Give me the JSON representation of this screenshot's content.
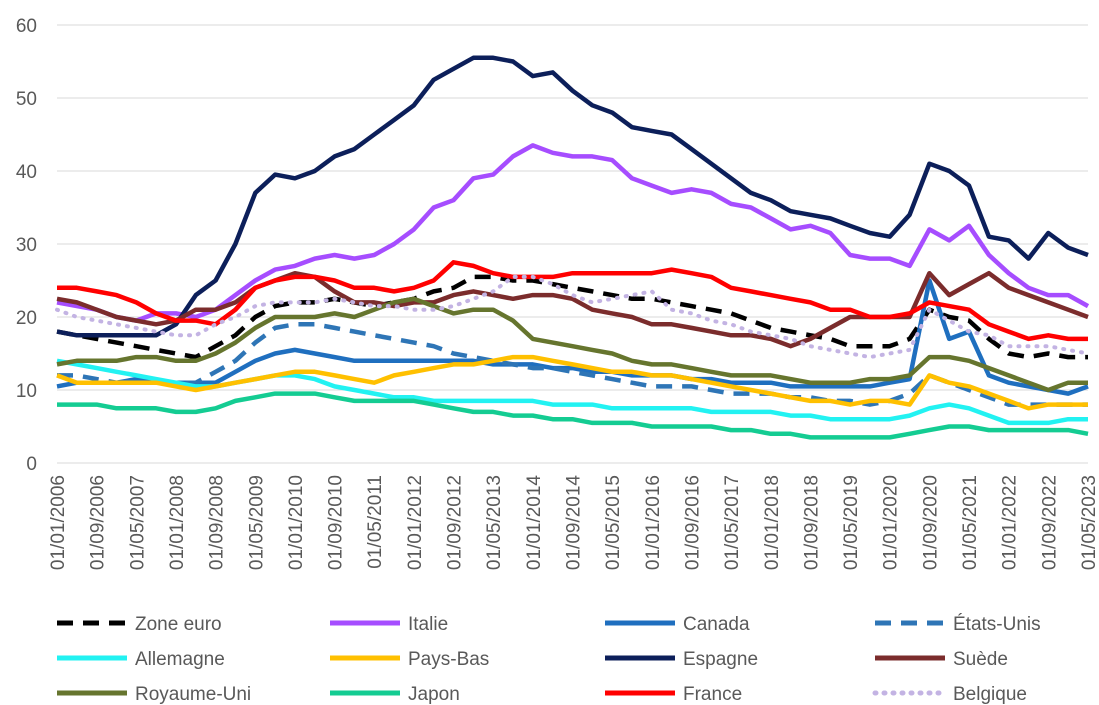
{
  "chart_data": {
    "type": "line",
    "categories": [
      "01/01/2006",
      null,
      "01/09/2006",
      null,
      "01/05/2007",
      null,
      "01/01/2008",
      null,
      "01/09/2008",
      null,
      "01/05/2009",
      null,
      "01/01/2010",
      null,
      "01/09/2010",
      null,
      "01/05/2011",
      null,
      "01/01/2012",
      null,
      "01/09/2012",
      null,
      "01/05/2013",
      null,
      "01/01/2014",
      null,
      "01/09/2014",
      null,
      "01/05/2015",
      null,
      "01/01/2016",
      null,
      "01/09/2016",
      null,
      "01/05/2017",
      null,
      "01/01/2018",
      null,
      "01/09/2018",
      null,
      "01/05/2019",
      null,
      "01/01/2020",
      null,
      "01/09/2020",
      null,
      "01/05/2021",
      null,
      "01/01/2022",
      null,
      "01/09/2022",
      null,
      "01/05/2023"
    ],
    "ylim": [
      0,
      60
    ],
    "yticks": [
      0,
      10,
      20,
      30,
      40,
      50,
      60
    ],
    "grid": true,
    "series": [
      {
        "name": "Zone euro",
        "color": "#000000",
        "style": "dashed",
        "values": [
          18,
          17.5,
          17,
          16.5,
          16,
          15.5,
          15,
          14.5,
          16,
          17.5,
          20,
          21.5,
          22,
          22,
          22.5,
          22,
          21.5,
          22,
          22.5,
          23.5,
          24,
          25.5,
          25.5,
          25,
          25,
          24.5,
          24,
          23.5,
          23,
          22.5,
          22.5,
          22,
          21.5,
          21,
          20.5,
          19.5,
          18.5,
          18,
          17.5,
          17,
          16,
          16,
          16,
          17,
          21,
          20,
          19.5,
          17,
          15,
          14.5,
          15,
          14.5,
          14.5
        ]
      },
      {
        "name": "Italie",
        "color": "#a64dff",
        "style": "solid",
        "values": [
          22,
          21.5,
          21,
          20,
          19.5,
          20.5,
          20.5,
          20,
          21,
          23,
          25,
          26.5,
          27,
          28,
          28.5,
          28,
          28.5,
          30,
          32,
          35,
          36,
          39,
          39.5,
          42,
          43.5,
          42.5,
          42,
          42,
          41.5,
          39,
          38,
          37,
          37.5,
          37,
          35.5,
          35,
          33.5,
          32,
          32.5,
          31.5,
          28.5,
          28,
          28,
          27,
          32,
          30.5,
          32.5,
          28.5,
          26,
          24,
          23,
          23,
          21.5
        ]
      },
      {
        "name": "Canada",
        "color": "#1f6fbf",
        "style": "solid",
        "values": [
          10.5,
          11,
          11,
          11,
          11.5,
          11,
          11,
          11,
          11,
          12.5,
          14,
          15,
          15.5,
          15,
          14.5,
          14,
          14,
          14,
          14,
          14,
          14,
          14,
          13.5,
          13.5,
          13.5,
          13,
          13,
          12.5,
          12.5,
          12,
          12,
          12,
          11.5,
          11.5,
          11,
          11,
          11,
          10.5,
          10.5,
          10.5,
          10.5,
          10.5,
          11,
          11.5,
          25,
          17,
          18,
          12,
          11,
          10.5,
          10,
          9.5,
          10.5
        ]
      },
      {
        "name": "États-Unis",
        "color": "#2e75b6",
        "style": "dashed",
        "values": [
          12,
          12,
          11.5,
          11,
          11,
          11,
          11,
          11,
          12.5,
          14,
          16.5,
          18.5,
          19,
          19,
          18.5,
          18,
          17.5,
          17,
          16.5,
          16,
          15,
          14.5,
          14,
          13.5,
          13,
          13,
          12.5,
          12,
          11.5,
          11,
          10.5,
          10.5,
          10.5,
          10,
          9.5,
          9.5,
          9.5,
          9,
          9,
          8.5,
          8.5,
          8,
          8.5,
          9.5,
          12,
          11,
          10,
          9,
          8,
          8,
          8,
          8,
          8
        ]
      },
      {
        "name": "Allemagne",
        "color": "#22f2f2",
        "style": "solid",
        "values": [
          14,
          13.5,
          13,
          12.5,
          12,
          11.5,
          11,
          10.5,
          10.5,
          11,
          11.5,
          12,
          12,
          11.5,
          10.5,
          10,
          9.5,
          9,
          9,
          8.5,
          8.5,
          8.5,
          8.5,
          8.5,
          8.5,
          8,
          8,
          8,
          7.5,
          7.5,
          7.5,
          7.5,
          7.5,
          7,
          7,
          7,
          7,
          6.5,
          6.5,
          6,
          6,
          6,
          6,
          6.5,
          7.5,
          8,
          7.5,
          6.5,
          5.5,
          5.5,
          5.5,
          6,
          6
        ]
      },
      {
        "name": "Pays-Bas",
        "color": "#ffc000",
        "style": "solid",
        "values": [
          12,
          11,
          11,
          11,
          11,
          11,
          10.5,
          10,
          10.5,
          11,
          11.5,
          12,
          12.5,
          12.5,
          12,
          11.5,
          11,
          12,
          12.5,
          13,
          13.5,
          13.5,
          14,
          14.5,
          14.5,
          14,
          13.5,
          13,
          12.5,
          12.5,
          12,
          12,
          11.5,
          11,
          10.5,
          10,
          9.5,
          9,
          8.5,
          8.5,
          8,
          8.5,
          8.5,
          8,
          12,
          11,
          10.5,
          9.5,
          8.5,
          7.5,
          8,
          8,
          8
        ]
      },
      {
        "name": "Espagne",
        "color": "#0c1f5a",
        "style": "solid",
        "values": [
          18,
          17.5,
          17.5,
          17.5,
          17.5,
          17.5,
          19,
          23,
          25,
          30,
          37,
          39.5,
          39,
          40,
          42,
          43,
          45,
          47,
          49,
          52.5,
          54,
          55.5,
          55.5,
          55,
          53,
          53.5,
          51,
          49,
          48,
          46,
          45.5,
          45,
          43,
          41,
          39,
          37,
          36,
          34.5,
          34,
          33.5,
          32.5,
          31.5,
          31,
          34,
          41,
          40,
          38,
          31,
          30.5,
          28,
          31.5,
          29.5,
          28.5
        ]
      },
      {
        "name": "Suède",
        "color": "#7b2c2c",
        "style": "solid",
        "values": [
          22.5,
          22,
          21,
          20,
          19.5,
          19,
          19.5,
          21,
          21,
          22,
          24,
          25,
          26,
          25.5,
          23.5,
          22,
          22,
          21.5,
          22,
          22,
          23,
          23.5,
          23,
          22.5,
          23,
          23,
          22.5,
          21,
          20.5,
          20,
          19,
          19,
          18.5,
          18,
          17.5,
          17.5,
          17,
          16,
          17,
          18.5,
          20,
          20,
          20,
          20,
          26,
          23,
          24.5,
          26,
          24,
          23,
          22,
          21,
          20
        ]
      },
      {
        "name": "Royaume-Uni",
        "color": "#66752e",
        "style": "solid",
        "values": [
          13.5,
          14,
          14,
          14,
          14.5,
          14.5,
          14,
          14,
          15,
          16.5,
          18.5,
          20,
          20,
          20,
          20.5,
          20,
          21,
          22,
          22.5,
          21.5,
          20.5,
          21,
          21,
          19.5,
          17,
          16.5,
          16,
          15.5,
          15,
          14,
          13.5,
          13.5,
          13,
          12.5,
          12,
          12,
          12,
          11.5,
          11,
          11,
          11,
          11.5,
          11.5,
          12,
          14.5,
          14.5,
          14,
          13,
          12,
          11,
          10,
          11,
          11
        ]
      },
      {
        "name": "Japon",
        "color": "#14cc92",
        "style": "solid",
        "values": [
          8,
          8,
          8,
          7.5,
          7.5,
          7.5,
          7,
          7,
          7.5,
          8.5,
          9,
          9.5,
          9.5,
          9.5,
          9,
          8.5,
          8.5,
          8.5,
          8.5,
          8,
          7.5,
          7,
          7,
          6.5,
          6.5,
          6,
          6,
          5.5,
          5.5,
          5.5,
          5,
          5,
          5,
          5,
          4.5,
          4.5,
          4,
          4,
          3.5,
          3.5,
          3.5,
          3.5,
          3.5,
          4,
          4.5,
          5,
          5,
          4.5,
          4.5,
          4.5,
          4.5,
          4.5,
          4
        ]
      },
      {
        "name": "France",
        "color": "#ff0000",
        "style": "solid",
        "values": [
          24,
          24,
          23.5,
          23,
          22,
          20.5,
          19.5,
          19.5,
          19,
          21,
          24,
          25,
          25.5,
          25.5,
          25,
          24,
          24,
          23.5,
          24,
          25,
          27.5,
          27,
          26,
          25.5,
          25.5,
          25.5,
          26,
          26,
          26,
          26,
          26,
          26.5,
          26,
          25.5,
          24,
          23.5,
          23,
          22.5,
          22,
          21,
          21,
          20,
          20,
          20.5,
          22,
          21.5,
          21,
          19,
          18,
          17,
          17.5,
          17,
          17
        ]
      },
      {
        "name": "Belgique",
        "color": "#c3b3e3",
        "style": "dotted",
        "values": [
          21,
          20,
          19.5,
          19,
          18.5,
          18,
          17.5,
          17.5,
          19,
          20,
          21.5,
          22,
          22,
          22,
          22.5,
          22,
          21.5,
          21.5,
          21,
          21,
          21.5,
          22.5,
          23.5,
          25.5,
          25.5,
          24.5,
          23,
          22,
          22.5,
          23,
          23.5,
          21,
          20.5,
          19.5,
          19,
          18,
          17.5,
          17,
          16,
          15.5,
          15,
          14.5,
          15,
          15.5,
          21,
          19.5,
          18,
          17.5,
          16,
          16,
          16,
          15.5,
          15
        ]
      }
    ]
  }
}
